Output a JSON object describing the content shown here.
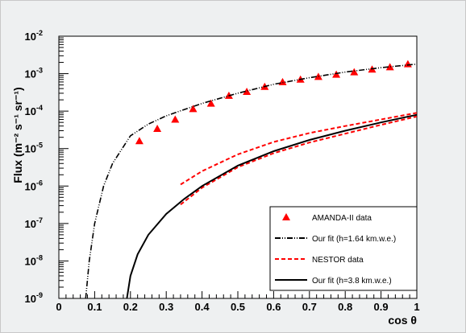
{
  "chart_data": {
    "type": "line",
    "xlabel": "cos θ",
    "ylabel": "Flux (m⁻² s⁻¹ sr⁻¹)",
    "xlim": [
      0,
      1
    ],
    "ylim_log10": [
      -9,
      -2
    ],
    "y_scale": "log",
    "grid": false,
    "legend_position": "bottom-right",
    "x_tick_labels": [
      "0",
      "0.1",
      "0.2",
      "0.3",
      "0.4",
      "0.5",
      "0.6",
      "0.7",
      "0.8",
      "0.9",
      "1"
    ],
    "y_tick_labels": [
      {
        "base": "10",
        "exp": "-9"
      },
      {
        "base": "10",
        "exp": "-8"
      },
      {
        "base": "10",
        "exp": "-7"
      },
      {
        "base": "10",
        "exp": "-6"
      },
      {
        "base": "10",
        "exp": "-5"
      },
      {
        "base": "10",
        "exp": "-4"
      },
      {
        "base": "10",
        "exp": "-3"
      },
      {
        "base": "10",
        "exp": "-2"
      }
    ],
    "series": [
      {
        "name": "AMANDA-II data",
        "kind": "markers",
        "marker": "triangle",
        "color": "#ff0000",
        "x": [
          0.225,
          0.275,
          0.325,
          0.375,
          0.425,
          0.475,
          0.525,
          0.575,
          0.625,
          0.675,
          0.725,
          0.775,
          0.825,
          0.875,
          0.925,
          0.975
        ],
        "y": [
          1.6e-05,
          3.4e-05,
          6e-05,
          0.000115,
          0.00016,
          0.00026,
          0.00033,
          0.00045,
          0.0006,
          0.0007,
          0.00083,
          0.00095,
          0.0011,
          0.0013,
          0.0015,
          0.0018
        ]
      },
      {
        "name": "Our fit (h=1.64 km.w.e.)",
        "kind": "line",
        "dash": "dash-dot-dot",
        "color": "#000000",
        "x": [
          0.075,
          0.085,
          0.1,
          0.125,
          0.15,
          0.2,
          0.25,
          0.3,
          0.35,
          0.4,
          0.5,
          0.6,
          0.7,
          0.8,
          0.9,
          1.0
        ],
        "y": [
          1e-09,
          1e-08,
          1e-07,
          1e-06,
          4e-06,
          2.2e-05,
          4.5e-05,
          7.5e-05,
          0.00011,
          0.00016,
          0.0003,
          0.00052,
          0.00078,
          0.0011,
          0.00145,
          0.0018
        ]
      },
      {
        "name": "NESTOR data",
        "kind": "band",
        "dash": "dashed",
        "color": "#ff0000",
        "x": [
          0.34,
          0.4,
          0.5,
          0.6,
          0.7,
          0.8,
          0.9,
          1.0
        ],
        "y_upper": [
          1.1e-06,
          2.5e-06,
          7e-06,
          1.5e-05,
          2.6e-05,
          4e-05,
          6e-05,
          9e-05
        ],
        "y_lower": [
          3.2e-07,
          9e-07,
          3.2e-06,
          7.5e-06,
          1.45e-05,
          2.5e-05,
          4.3e-05,
          7.2e-05
        ]
      },
      {
        "name": "Our fit (h=3.8 km.w.e.)",
        "kind": "line",
        "dash": "solid",
        "color": "#000000",
        "x": [
          0.19,
          0.2,
          0.22,
          0.25,
          0.3,
          0.35,
          0.4,
          0.5,
          0.6,
          0.7,
          0.8,
          0.9,
          1.0
        ],
        "y": [
          1e-09,
          4e-09,
          1.5e-08,
          5e-08,
          1.8e-07,
          4.5e-07,
          1e-06,
          3.5e-06,
          8.5e-06,
          1.7e-05,
          3e-05,
          5e-05,
          8e-05
        ]
      }
    ]
  }
}
